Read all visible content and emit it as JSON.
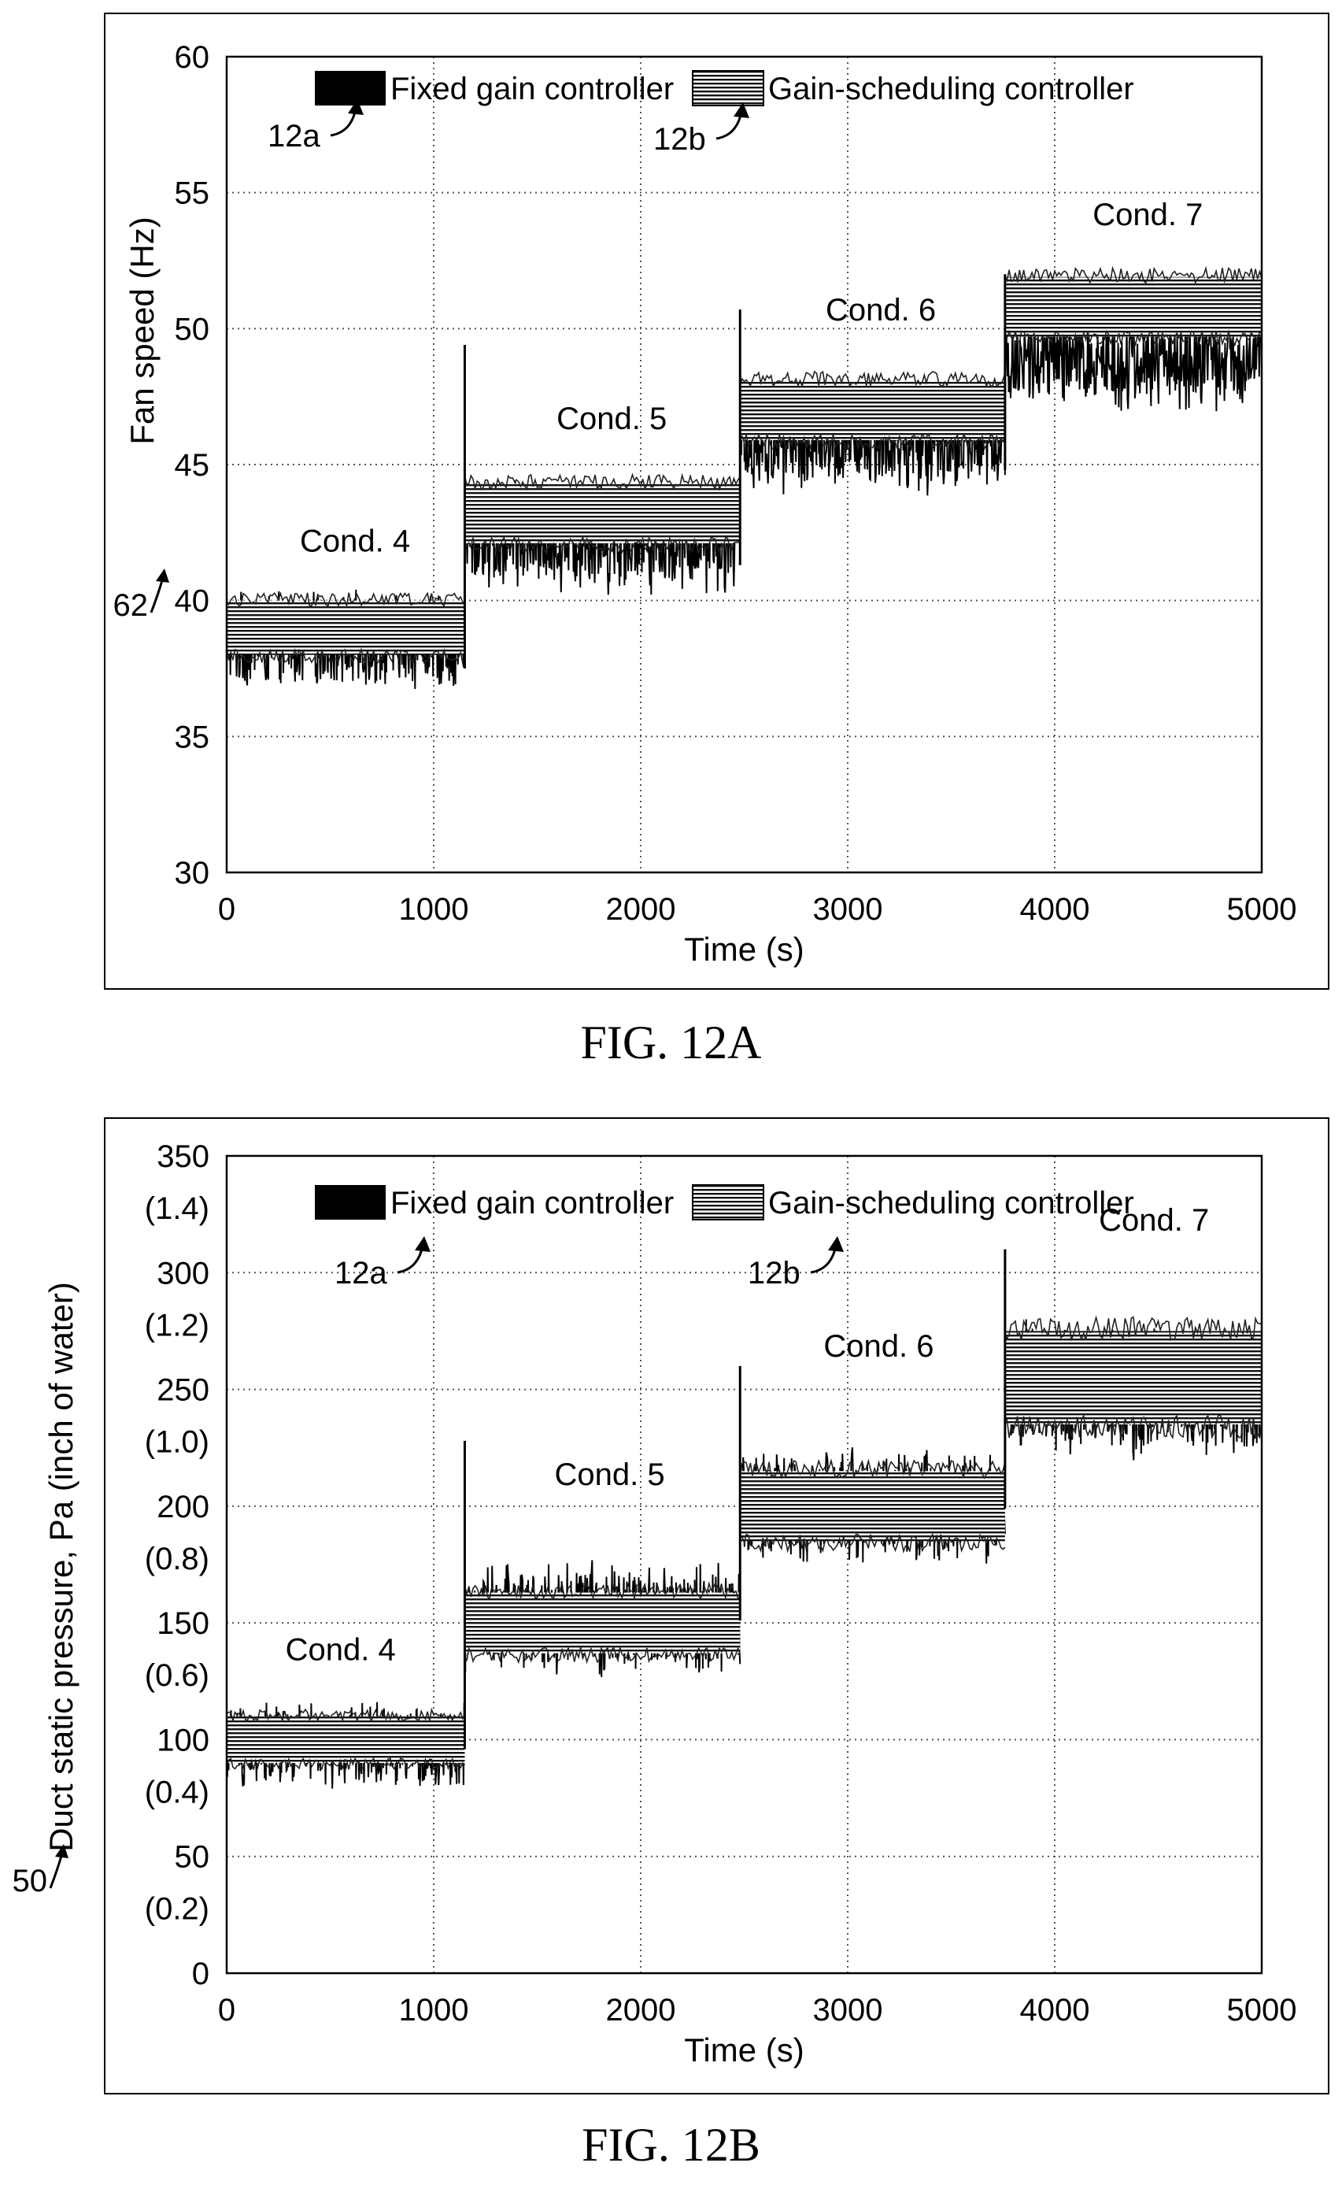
{
  "figures": [
    {
      "caption": "FIG. 12A",
      "chart_data": {
        "type": "line",
        "xlabel": "Time (s)",
        "ylabel": "Fan speed (Hz)",
        "xlim": [
          0,
          5000
        ],
        "ylim": [
          30,
          60
        ],
        "xticks": [
          "0",
          "1000",
          "2000",
          "3000",
          "4000",
          "5000"
        ],
        "yticks": [
          "30",
          "35",
          "40",
          "45",
          "50",
          "55",
          "60"
        ],
        "grid": true,
        "legend_position": "top",
        "series": [
          {
            "name": "Fixed gain controller",
            "ref": "12a",
            "style": "solid-black",
            "segments": [
              {
                "x0": 0,
                "x1": 1150,
                "mean": 38.5,
                "amp": 1.9
              },
              {
                "x0": 1150,
                "x1": 2480,
                "mean": 42.3,
                "amp": 2.2
              },
              {
                "x0": 2480,
                "x1": 3760,
                "mean": 45.8,
                "amp": 2.0
              },
              {
                "x0": 3760,
                "x1": 5000,
                "mean": 48.8,
                "amp": 2.0
              }
            ]
          },
          {
            "name": "Gain-scheduling controller",
            "ref": "12b",
            "style": "hatched",
            "segments": [
              {
                "x0": 0,
                "x1": 1150,
                "mean": 39.0,
                "amp": 1.0
              },
              {
                "x0": 1150,
                "x1": 2480,
                "mean": 43.2,
                "amp": 1.1
              },
              {
                "x0": 2480,
                "x1": 3760,
                "mean": 47.0,
                "amp": 1.1
              },
              {
                "x0": 3760,
                "x1": 5000,
                "mean": 50.8,
                "amp": 1.1
              }
            ]
          }
        ],
        "spikes": [
          {
            "x": 1150,
            "y": 49.4
          },
          {
            "x": 2480,
            "y": 50.7
          },
          {
            "x": 3760,
            "y": 52.0
          }
        ],
        "annotations": [
          {
            "text": "Cond. 4",
            "x": 620,
            "y": 41.8
          },
          {
            "text": "Cond. 5",
            "x": 1860,
            "y": 46.3
          },
          {
            "text": "Cond. 6",
            "x": 3160,
            "y": 50.3
          },
          {
            "text": "Cond. 7",
            "x": 4450,
            "y": 53.8
          }
        ],
        "axis_ref": "62"
      }
    },
    {
      "caption": "FIG. 12B",
      "chart_data": {
        "type": "line",
        "xlabel": "Time (s)",
        "ylabel": "Duct static pressure, Pa (inch of water)",
        "xlim": [
          0,
          5000
        ],
        "ylim": [
          0,
          350
        ],
        "xticks": [
          "0",
          "1000",
          "2000",
          "3000",
          "4000",
          "5000"
        ],
        "yticks": [
          {
            "value": 0,
            "label": "0",
            "sub": ""
          },
          {
            "value": 50,
            "label": "50",
            "sub": "(0.2)"
          },
          {
            "value": 100,
            "label": "100",
            "sub": "(0.4)"
          },
          {
            "value": 150,
            "label": "150",
            "sub": "(0.6)"
          },
          {
            "value": 200,
            "label": "200",
            "sub": "(0.8)"
          },
          {
            "value": 250,
            "label": "250",
            "sub": "(1.0)"
          },
          {
            "value": 300,
            "label": "300",
            "sub": "(1.2)"
          },
          {
            "value": 350,
            "label": "350",
            "sub": "(1.4)"
          }
        ],
        "grid": true,
        "legend_position": "top",
        "series": [
          {
            "name": "Fixed gain controller",
            "ref": "12a",
            "style": "solid-black",
            "segments": [
              {
                "x0": 0,
                "x1": 1150,
                "mean": 97,
                "amp": 20
              },
              {
                "x0": 1150,
                "x1": 2480,
                "mean": 152,
                "amp": 27
              },
              {
                "x0": 2480,
                "x1": 3760,
                "mean": 200,
                "amp": 27
              },
              {
                "x0": 3760,
                "x1": 5000,
                "mean": 250,
                "amp": 32
              }
            ]
          },
          {
            "name": "Gain-scheduling controller",
            "ref": "12b",
            "style": "hatched",
            "segments": [
              {
                "x0": 0,
                "x1": 1150,
                "mean": 100,
                "amp": 10
              },
              {
                "x0": 1150,
                "x1": 2480,
                "mean": 150,
                "amp": 13
              },
              {
                "x0": 2480,
                "x1": 3760,
                "mean": 200,
                "amp": 15
              },
              {
                "x0": 3760,
                "x1": 5000,
                "mean": 255,
                "amp": 20
              }
            ]
          }
        ],
        "spikes": [
          {
            "x": 1150,
            "y": 228
          },
          {
            "x": 2480,
            "y": 260
          },
          {
            "x": 3760,
            "y": 310
          }
        ],
        "annotations": [
          {
            "text": "Cond. 4",
            "x": 550,
            "y": 134
          },
          {
            "text": "Cond. 5",
            "x": 1850,
            "y": 209
          },
          {
            "text": "Cond. 6",
            "x": 3150,
            "y": 264
          },
          {
            "text": "Cond. 7",
            "x": 4480,
            "y": 318
          }
        ],
        "axis_ref": "50"
      }
    }
  ]
}
